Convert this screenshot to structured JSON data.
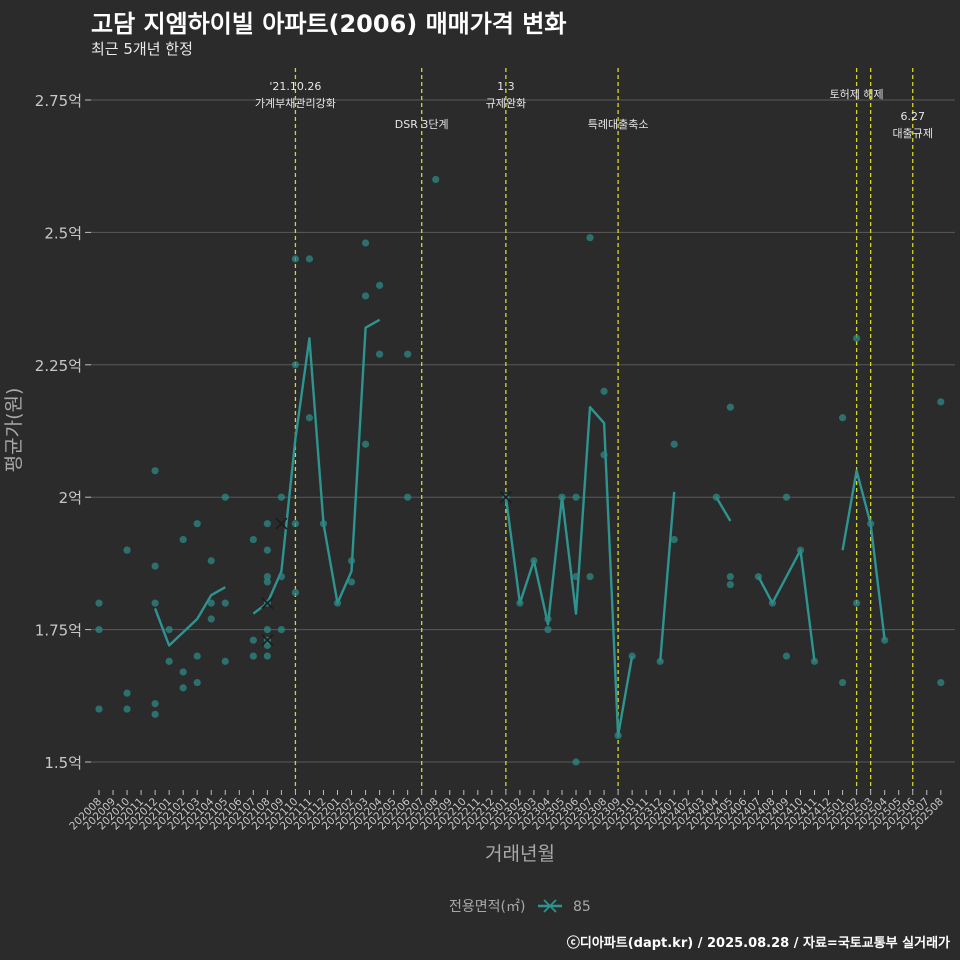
{
  "chart_data": {
    "type": "line+scatter",
    "title": "고담 지엠하이빌 아파트(2006) 매매가격 변화",
    "subtitle": "최근 5개년 한정",
    "xlabel": "거래년월",
    "ylabel": "평균가(원)",
    "caption": "ⓒ디아파트(dapt.kr) / 2025.08.28 / 자료=국토교통부 실거래가",
    "legend": {
      "title": "전용면적(㎡)",
      "entries": [
        "85"
      ],
      "position": "bottom"
    },
    "y_ticks": [
      {
        "value": 1.5,
        "label": "1.5억"
      },
      {
        "value": 1.75,
        "label": "1.75억"
      },
      {
        "value": 2.0,
        "label": "2억"
      },
      {
        "value": 2.25,
        "label": "2.25억"
      },
      {
        "value": 2.5,
        "label": "2.5억"
      },
      {
        "value": 2.75,
        "label": "2.75억"
      }
    ],
    "ylim": [
      1.43,
      2.83
    ],
    "x_categories": [
      "202008",
      "202009",
      "202010",
      "202011",
      "202012",
      "202101",
      "202102",
      "202103",
      "202104",
      "202105",
      "202106",
      "202107",
      "202108",
      "202109",
      "202110",
      "202111",
      "202112",
      "202201",
      "202202",
      "202203",
      "202204",
      "202205",
      "202206",
      "202207",
      "202208",
      "202209",
      "202210",
      "202211",
      "202212",
      "202301",
      "202302",
      "202303",
      "202304",
      "202305",
      "202306",
      "202307",
      "202308",
      "202309",
      "202310",
      "202311",
      "202312",
      "202401",
      "202402",
      "202403",
      "202404",
      "202405",
      "202406",
      "202407",
      "202408",
      "202409",
      "202410",
      "202411",
      "202412",
      "202501",
      "202502",
      "202503",
      "202504",
      "202505",
      "202506",
      "202507",
      "202508"
    ],
    "events": [
      {
        "x": 14.0,
        "lines": [
          "'21.10.26",
          "가계부채관리강화"
        ],
        "row": 0
      },
      {
        "x": 23.0,
        "lines": [
          "DSR 3단계"
        ],
        "row": 2
      },
      {
        "x": 29.0,
        "lines": [
          "1.3",
          "규제완화"
        ],
        "row": 0
      },
      {
        "x": 37.0,
        "lines": [
          "특례대출축소"
        ],
        "row": 2
      },
      {
        "x": 54.0,
        "lines": [
          "토허제 해제"
        ],
        "row": 1
      },
      {
        "x": 55.0,
        "lines": [],
        "row": 1
      },
      {
        "x": 58.0,
        "lines": [
          "6.27",
          "대출규제"
        ],
        "row": 3
      }
    ],
    "series": [
      {
        "name": "85",
        "segments": [
          [
            [
              4,
              1.79
            ],
            [
              5,
              1.72
            ],
            [
              6,
              1.745
            ],
            [
              7,
              1.77
            ],
            [
              8,
              1.815
            ],
            [
              9,
              1.83
            ]
          ],
          [
            [
              11,
              1.78
            ],
            [
              12,
              1.8
            ],
            [
              13,
              1.86
            ],
            [
              14,
              2.11
            ],
            [
              15,
              2.3
            ],
            [
              16,
              1.95
            ],
            [
              17,
              1.8
            ],
            [
              18,
              1.86
            ],
            [
              19,
              2.32
            ],
            [
              20,
              2.335
            ]
          ],
          [
            [
              29,
              2.0
            ],
            [
              30,
              1.8
            ],
            [
              31,
              1.88
            ],
            [
              32,
              1.76
            ],
            [
              33,
              2.0
            ],
            [
              34,
              1.78
            ],
            [
              35,
              2.17
            ],
            [
              36,
              2.14
            ],
            [
              37,
              1.55
            ],
            [
              38,
              1.7
            ]
          ],
          [
            [
              40,
              1.69
            ],
            [
              41,
              2.01
            ]
          ],
          [
            [
              44,
              2.0
            ],
            [
              45,
              1.955
            ]
          ],
          [
            [
              47,
              1.85
            ],
            [
              48,
              1.8
            ],
            [
              50,
              1.9
            ],
            [
              51,
              1.69
            ]
          ],
          [
            [
              53,
              1.9
            ],
            [
              54,
              2.05
            ],
            [
              55,
              1.95
            ],
            [
              56,
              1.73
            ]
          ]
        ]
      }
    ],
    "points": [
      [
        0,
        1.6
      ],
      [
        0,
        1.75
      ],
      [
        0,
        1.8
      ],
      [
        2,
        1.6
      ],
      [
        2,
        1.63
      ],
      [
        2,
        1.9
      ],
      [
        4,
        1.59
      ],
      [
        4,
        1.61
      ],
      [
        4,
        1.8
      ],
      [
        4,
        1.87
      ],
      [
        4,
        2.05
      ],
      [
        5,
        1.69
      ],
      [
        5,
        1.75
      ],
      [
        6,
        1.64
      ],
      [
        6,
        1.67
      ],
      [
        6,
        1.92
      ],
      [
        7,
        1.65
      ],
      [
        7,
        1.7
      ],
      [
        7,
        1.95
      ],
      [
        8,
        1.77
      ],
      [
        8,
        1.8
      ],
      [
        8,
        1.88
      ],
      [
        9,
        1.69
      ],
      [
        9,
        1.8
      ],
      [
        9,
        2.0
      ],
      [
        11,
        1.7
      ],
      [
        11,
        1.73
      ],
      [
        11,
        1.92
      ],
      [
        12,
        1.7
      ],
      [
        12,
        1.72
      ],
      [
        12,
        1.73
      ],
      [
        12,
        1.75
      ],
      [
        12,
        1.8
      ],
      [
        12,
        1.84
      ],
      [
        12,
        1.85
      ],
      [
        12,
        1.9
      ],
      [
        12,
        1.95
      ],
      [
        13,
        1.75
      ],
      [
        13,
        1.85
      ],
      [
        13,
        2.0
      ],
      [
        14,
        1.82
      ],
      [
        14,
        1.95
      ],
      [
        14,
        2.25
      ],
      [
        14,
        2.45
      ],
      [
        15,
        2.15
      ],
      [
        15,
        2.45
      ],
      [
        16,
        1.95
      ],
      [
        17,
        1.8
      ],
      [
        18,
        1.84
      ],
      [
        18,
        1.88
      ],
      [
        19,
        2.1
      ],
      [
        19,
        2.38
      ],
      [
        19,
        2.48
      ],
      [
        20,
        2.27
      ],
      [
        20,
        2.4
      ],
      [
        22,
        2.0
      ],
      [
        22,
        2.27
      ],
      [
        24,
        2.6
      ],
      [
        29,
        2.0
      ],
      [
        30,
        1.8
      ],
      [
        31,
        1.88
      ],
      [
        32,
        1.75
      ],
      [
        32,
        1.77
      ],
      [
        33,
        2.0
      ],
      [
        34,
        1.5
      ],
      [
        34,
        1.85
      ],
      [
        34,
        2.0
      ],
      [
        35,
        1.85
      ],
      [
        35,
        2.49
      ],
      [
        36,
        2.08
      ],
      [
        36,
        2.2
      ],
      [
        37,
        1.55
      ],
      [
        38,
        1.7
      ],
      [
        40,
        1.69
      ],
      [
        41,
        1.92
      ],
      [
        41,
        2.1
      ],
      [
        44,
        2.0
      ],
      [
        45,
        1.835
      ],
      [
        45,
        1.85
      ],
      [
        45,
        2.17
      ],
      [
        47,
        1.85
      ],
      [
        48,
        1.8
      ],
      [
        49,
        1.7
      ],
      [
        49,
        2.0
      ],
      [
        50,
        1.9
      ],
      [
        51,
        1.69
      ],
      [
        53,
        1.65
      ],
      [
        53,
        2.15
      ],
      [
        54,
        1.8
      ],
      [
        54,
        2.3
      ],
      [
        55,
        1.95
      ],
      [
        56,
        1.73
      ],
      [
        60,
        1.65
      ],
      [
        60,
        2.18
      ]
    ],
    "x_markers": [
      [
        12,
        1.73
      ],
      [
        12,
        1.8
      ],
      [
        13,
        1.95
      ],
      [
        29,
        2.0
      ]
    ],
    "colors": {
      "line": "#2e9490",
      "point": "#2e8a84",
      "event": "#d6d62a",
      "grid": "#5a5a5a",
      "background": "#2b2b2c",
      "axis_text": "#a8a8a8"
    }
  }
}
